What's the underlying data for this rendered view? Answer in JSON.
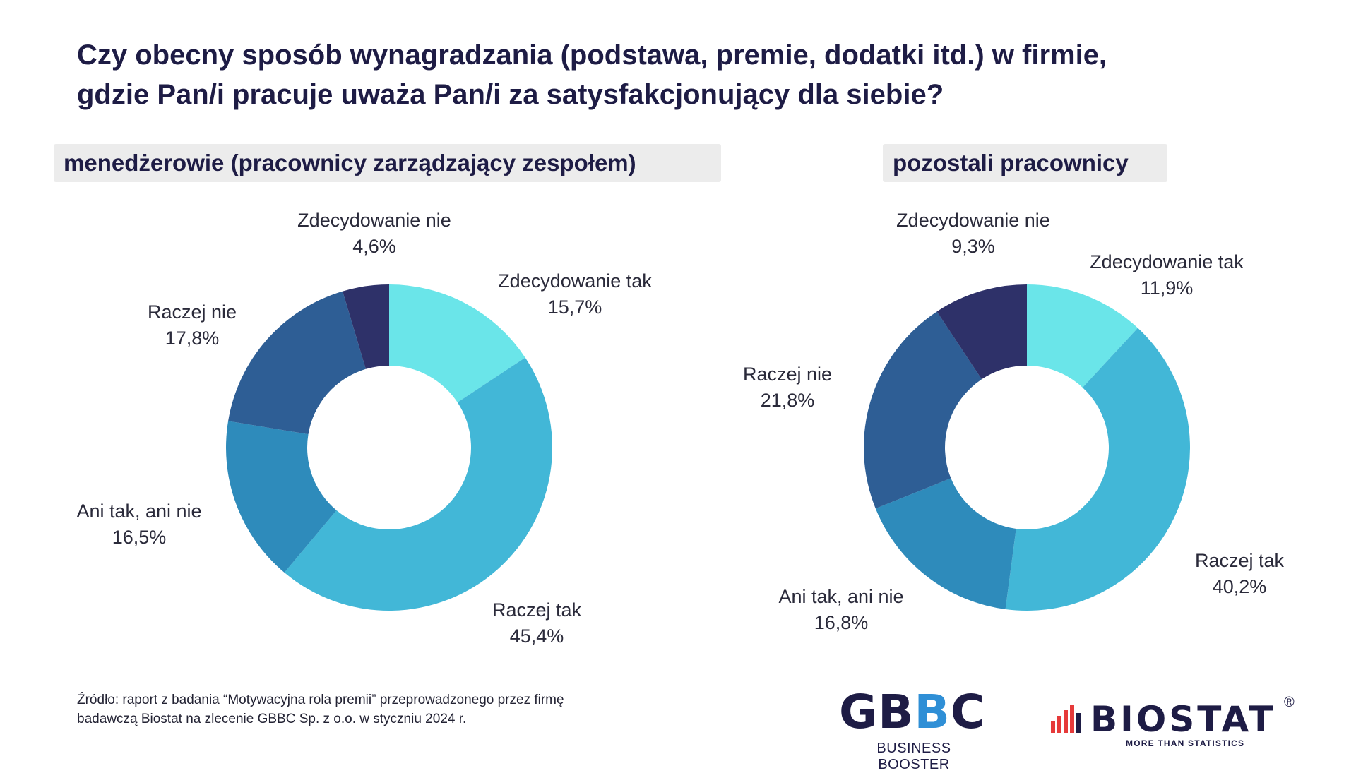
{
  "title": {
    "line1": "Czy obecny sposób wynagradzania (podstawa, premie, dodatki itd.) w firmie,",
    "line2": "gdzie Pan/i pracuje uważa Pan/i za satysfakcjonujący dla siebie?"
  },
  "colors": {
    "Zdecydowanie tak": "#6ae5e9",
    "Raczej tak": "#42b7d7",
    "Ani tak, ani nie": "#2e8bbb",
    "Raczej nie": "#2e5e95",
    "Zdecydowanie nie": "#2e3169"
  },
  "chart_data": [
    {
      "type": "pie",
      "donut": true,
      "title": "menedżerowie (pracownicy zarządzający zespołem)",
      "categories": [
        "Zdecydowanie tak",
        "Raczej tak",
        "Ani tak, ani nie",
        "Raczej nie",
        "Zdecydowanie nie"
      ],
      "values": [
        15.7,
        45.4,
        16.5,
        17.8,
        4.6
      ],
      "value_labels": [
        "15,7%",
        "45,4%",
        "16,5%",
        "17,8%",
        "4,6%"
      ]
    },
    {
      "type": "pie",
      "donut": true,
      "title": "pozostali pracownicy",
      "categories": [
        "Zdecydowanie tak",
        "Raczej tak",
        "Ani tak, ani nie",
        "Raczej nie",
        "Zdecydowanie nie"
      ],
      "values": [
        11.9,
        40.2,
        16.8,
        21.8,
        9.3
      ],
      "value_labels": [
        "11,9%",
        "40,2%",
        "16,8%",
        "21,8%",
        "9,3%"
      ]
    }
  ],
  "source": {
    "line1": "Źródło: raport z badania “Motywacyjna rola premii” przeprowadzonego przez firmę",
    "line2": "badawczą Biostat na zlecenie GBBC Sp. z o.o. w styczniu 2024 r."
  },
  "logos": {
    "gbbc": {
      "text_a": "GB",
      "text_b": "B",
      "text_c": "C",
      "subtitle": "BUSINESS BOOSTER"
    },
    "biostat": {
      "text": "BIOSTAT",
      "registered": "®",
      "subtitle": "MORE THAN STATISTICS"
    }
  }
}
